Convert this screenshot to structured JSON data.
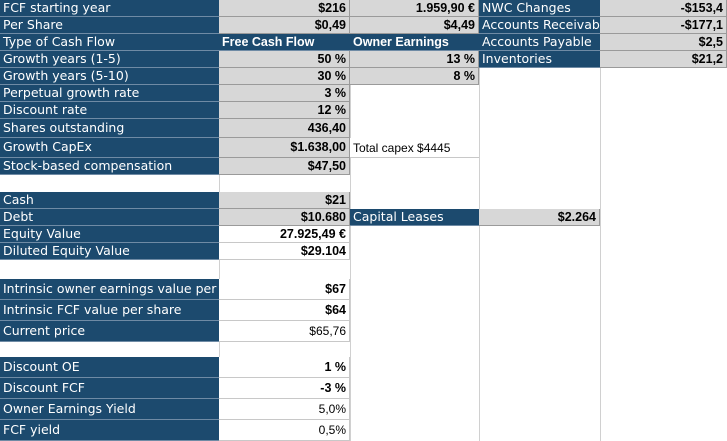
{
  "block1": [
    {
      "label": "FCF starting year",
      "value": "$216"
    },
    {
      "label": "Per Share",
      "value": "$0,49"
    },
    {
      "label": "Type of Cash Flow",
      "value": "Free Cash Flow"
    },
    {
      "label": "Growth years (1-5)",
      "value": "50 %"
    },
    {
      "label": "Growth years (5-10)",
      "value": "30 %"
    },
    {
      "label": "Perpetual growth rate",
      "value": "3 %"
    },
    {
      "label": "Discount rate",
      "value": "12 %"
    },
    {
      "label": "Shares outstanding",
      "value": "436,40"
    },
    {
      "label": "Growth CapEx",
      "value": "$1.638,00",
      "note": "Total capex $4445"
    },
    {
      "label": "Stock-based compensation",
      "value": "$47,50"
    }
  ],
  "colC": [
    "1.959,90 €",
    "$4,49",
    "Owner Earnings",
    "13 %",
    "8 %"
  ],
  "colD": [
    "NWC Changes",
    "Accounts Receivable",
    "Accounts Payable",
    "Inventories"
  ],
  "colF": [
    "-$153,4",
    "-$177,1",
    "$2,5",
    "$21,2"
  ],
  "block2": [
    {
      "label": "Cash",
      "value": "$21"
    },
    {
      "label": "Debt",
      "value": "$10.680"
    },
    {
      "label": "Equity Value",
      "value": "27.925,49 €"
    },
    {
      "label": "Diluted Equity Value",
      "value": "$29.104"
    }
  ],
  "capital_leases": {
    "label": "Capital Leases",
    "value": "$2.264"
  },
  "block3": [
    {
      "label": "Intrinsic owner earnings value per share",
      "value": "$67"
    },
    {
      "label": "Intrinsic FCF value per share",
      "value": "$64"
    },
    {
      "label": "Current price",
      "value": "$65,76"
    }
  ],
  "block4": [
    {
      "label": "Discount OE",
      "value": "1 %"
    },
    {
      "label": "Discount FCF",
      "value": "-3 %"
    },
    {
      "label": "Owner Earnings Yield",
      "value": "5,0%"
    },
    {
      "label": "FCF yield",
      "value": "0,5%"
    }
  ]
}
